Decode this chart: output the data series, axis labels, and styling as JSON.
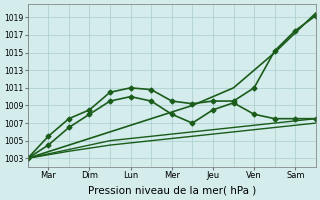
{
  "background_color": "#d4ecec",
  "grid_color": "#aacccc",
  "line_color": "#1a5c1a",
  "xlabel": "Pression niveau de la mer( hPa )",
  "xlabel_fontsize": 7.5,
  "tick_labels": [
    "Mar",
    "Dim",
    "Lun",
    "Mer",
    "Jeu",
    "Ven",
    "Sam"
  ],
  "yticks": [
    1003,
    1005,
    1007,
    1009,
    1011,
    1013,
    1015,
    1017,
    1019
  ],
  "ylim": [
    1002.0,
    1020.5
  ],
  "xlim": [
    0,
    21
  ],
  "series": [
    {
      "x": [
        0,
        3,
        6,
        9,
        12,
        15,
        18,
        21
      ],
      "y": [
        1003,
        1004.5,
        1006,
        1007.5,
        1009,
        1011,
        1015,
        1019.5
      ],
      "with_markers": false,
      "linewidth": 1.2
    },
    {
      "x": [
        0,
        1.5,
        3,
        4.5,
        6,
        7.5,
        9,
        10.5,
        12,
        13.5,
        15,
        16.5,
        18,
        19.5,
        21
      ],
      "y": [
        1003,
        1005.5,
        1007.5,
        1008.5,
        1010.5,
        1011.0,
        1010.8,
        1009.5,
        1009.2,
        1009.5,
        1009.5,
        1011.0,
        1015.2,
        1017.5,
        1019.2
      ],
      "with_markers": true,
      "linewidth": 1.2
    },
    {
      "x": [
        0,
        1.5,
        3,
        4.5,
        6,
        7.5,
        9,
        10.5,
        12,
        13.5,
        15,
        16.5,
        18,
        19.5,
        21
      ],
      "y": [
        1003,
        1004.5,
        1006.5,
        1008.0,
        1009.5,
        1010.0,
        1009.5,
        1008.0,
        1007.0,
        1008.5,
        1009.3,
        1008.0,
        1007.5,
        1007.5,
        1007.5
      ],
      "with_markers": true,
      "linewidth": 1.2
    },
    {
      "x": [
        0,
        3,
        6,
        9,
        12,
        15,
        18,
        21
      ],
      "y": [
        1003,
        1004,
        1005,
        1005.5,
        1006,
        1006.5,
        1007,
        1007.5
      ],
      "with_markers": false,
      "linewidth": 1.0
    },
    {
      "x": [
        0,
        3,
        6,
        9,
        12,
        15,
        18,
        21
      ],
      "y": [
        1003,
        1003.8,
        1004.5,
        1005.0,
        1005.5,
        1006.0,
        1006.5,
        1007.0
      ],
      "with_markers": false,
      "linewidth": 1.0
    }
  ],
  "day_x_positions": [
    0,
    3,
    6,
    9,
    12,
    15,
    18,
    21
  ],
  "tick_x_positions": [
    1.5,
    4.5,
    7.5,
    10.5,
    13.5,
    16.5,
    19.5
  ],
  "marker": "D",
  "markersize": 2.5
}
